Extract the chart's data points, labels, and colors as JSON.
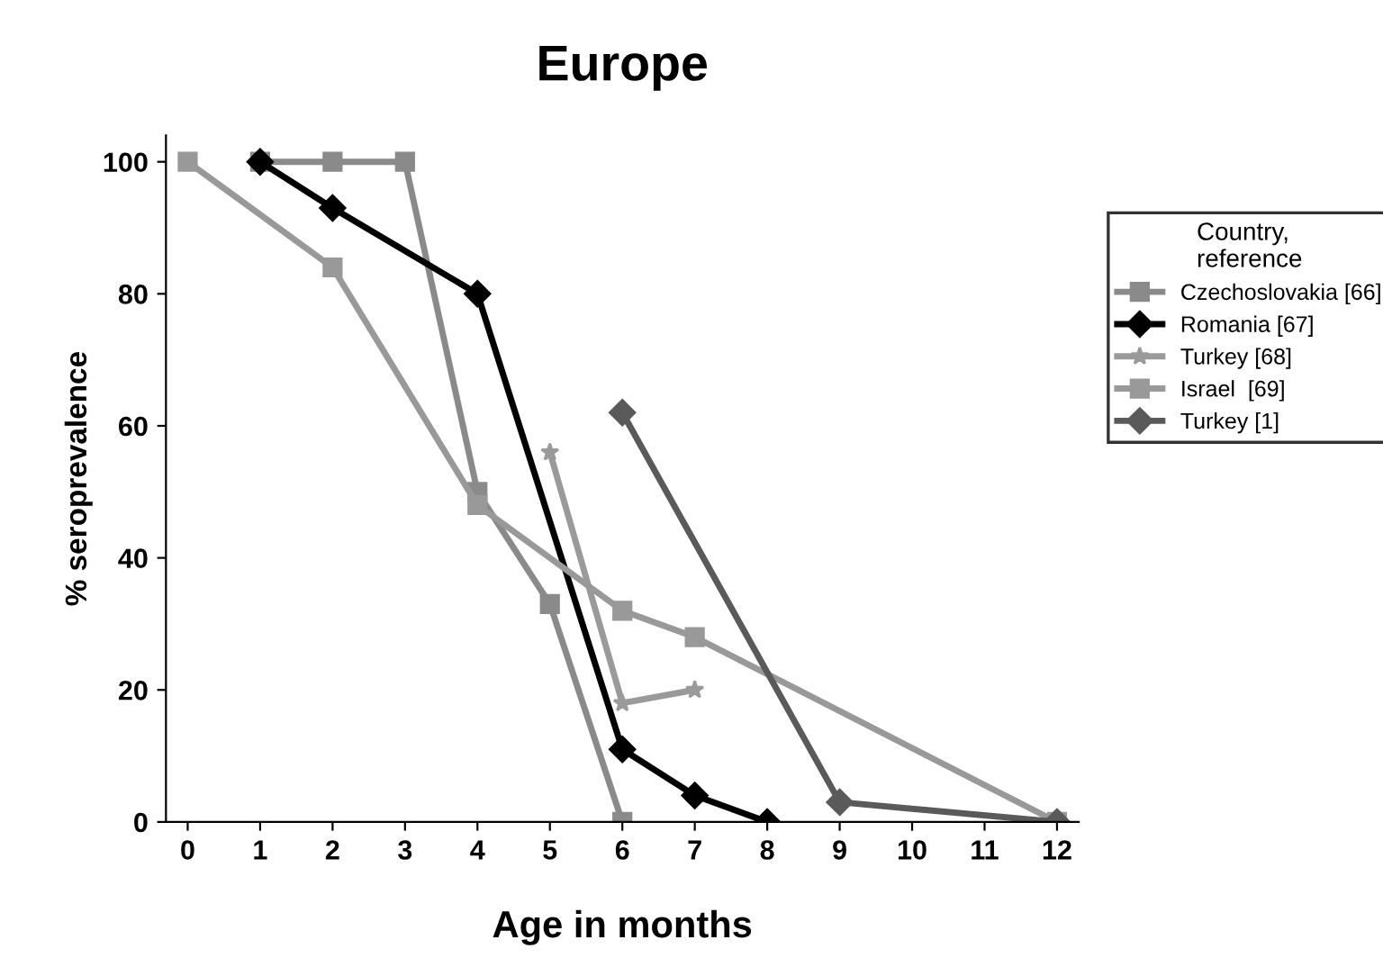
{
  "chart_data": {
    "type": "line",
    "title": "Europe",
    "xlabel": "Age in months",
    "ylabel": "% seroprevalence",
    "legend_title": "Country,\nreference",
    "legend": "right",
    "xlim": [
      -0.3,
      12.3
    ],
    "xticks": [
      0,
      1,
      2,
      3,
      4,
      5,
      6,
      7,
      8,
      9,
      10,
      11,
      12
    ],
    "ylim": [
      0,
      104
    ],
    "yticks": [
      0,
      20,
      40,
      60,
      80,
      100
    ],
    "grid": false,
    "series": [
      {
        "name": "Czechoslovakia [66]",
        "color": "#8a8a8a",
        "marker": "square",
        "x": [
          1,
          2,
          3,
          4,
          5,
          6
        ],
        "values": [
          100,
          100,
          100,
          50,
          33,
          0
        ]
      },
      {
        "name": "Romania [67]",
        "color": "#000000",
        "marker": "diamond",
        "x": [
          1,
          2,
          4,
          6,
          7,
          8
        ],
        "values": [
          100,
          93,
          80,
          11,
          4,
          0
        ]
      },
      {
        "name": "Turkey [68]",
        "color": "#9a9a9a",
        "marker": "star",
        "x": [
          5,
          6,
          7
        ],
        "values": [
          56,
          18,
          20
        ]
      },
      {
        "name": "Israel  [69]",
        "color": "#999999",
        "marker": "square",
        "x": [
          0,
          2,
          4,
          6,
          7,
          12
        ],
        "values": [
          100,
          84,
          48,
          32,
          28,
          0
        ]
      },
      {
        "name": "Turkey [1]",
        "color": "#5a5a5a",
        "marker": "diamond",
        "x": [
          6,
          9,
          12
        ],
        "values": [
          62,
          3,
          0
        ]
      }
    ]
  }
}
